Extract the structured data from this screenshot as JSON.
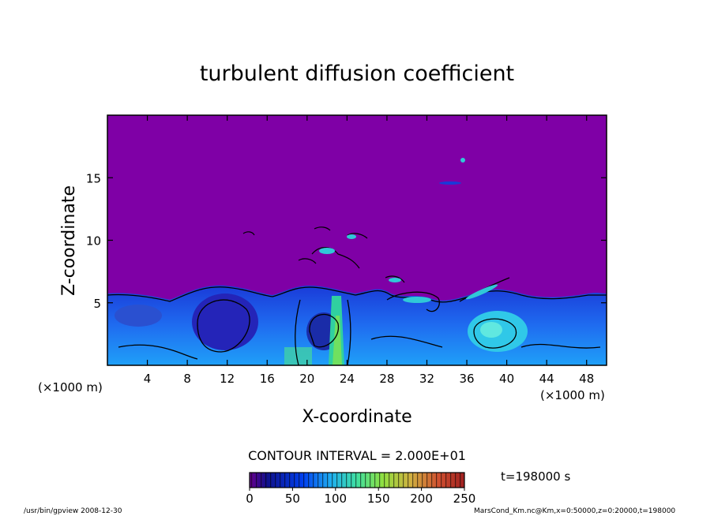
{
  "chart_data": {
    "type": "heatmap",
    "title": "turbulent diffusion coefficient",
    "xlabel": "X-coordinate",
    "ylabel": "Z-coordinate",
    "x_unit": "(×1000 m)",
    "y_unit": "(×1000 m)",
    "xlim": [
      0,
      50
    ],
    "ylim": [
      0,
      20
    ],
    "x_ticks": [
      4,
      8,
      12,
      16,
      20,
      24,
      28,
      32,
      36,
      40,
      44,
      48
    ],
    "y_ticks": [
      5,
      10,
      15
    ],
    "contour_interval": "CONTOUR INTERVAL = 2.000E+01",
    "colorbar": {
      "ticks": [
        0,
        50,
        100,
        150,
        200,
        250
      ],
      "range": [
        0,
        250
      ],
      "colors": [
        "#7a00a8",
        "#0a0a8a",
        "#0030e0",
        "#0090ff",
        "#30d8d0",
        "#60e060",
        "#a8e030",
        "#e0a040",
        "#d04020",
        "#a02020"
      ]
    },
    "background_color": "#7f00a6",
    "time_label": "t=198000 s",
    "footer_left": "/usr/bin/gpview   2008-12-30",
    "footer_right": "MarsCond_Km.nc@Km,x=0:50000,z=0:20000,t=198000",
    "features": [
      {
        "x": 11,
        "z": 3.5,
        "value": 40
      },
      {
        "x": 22,
        "z": 3.0,
        "value": 60
      },
      {
        "x": 38.5,
        "z": 3.0,
        "value": 110
      },
      {
        "x": 19.5,
        "z": 0.5,
        "value": 130
      }
    ]
  }
}
